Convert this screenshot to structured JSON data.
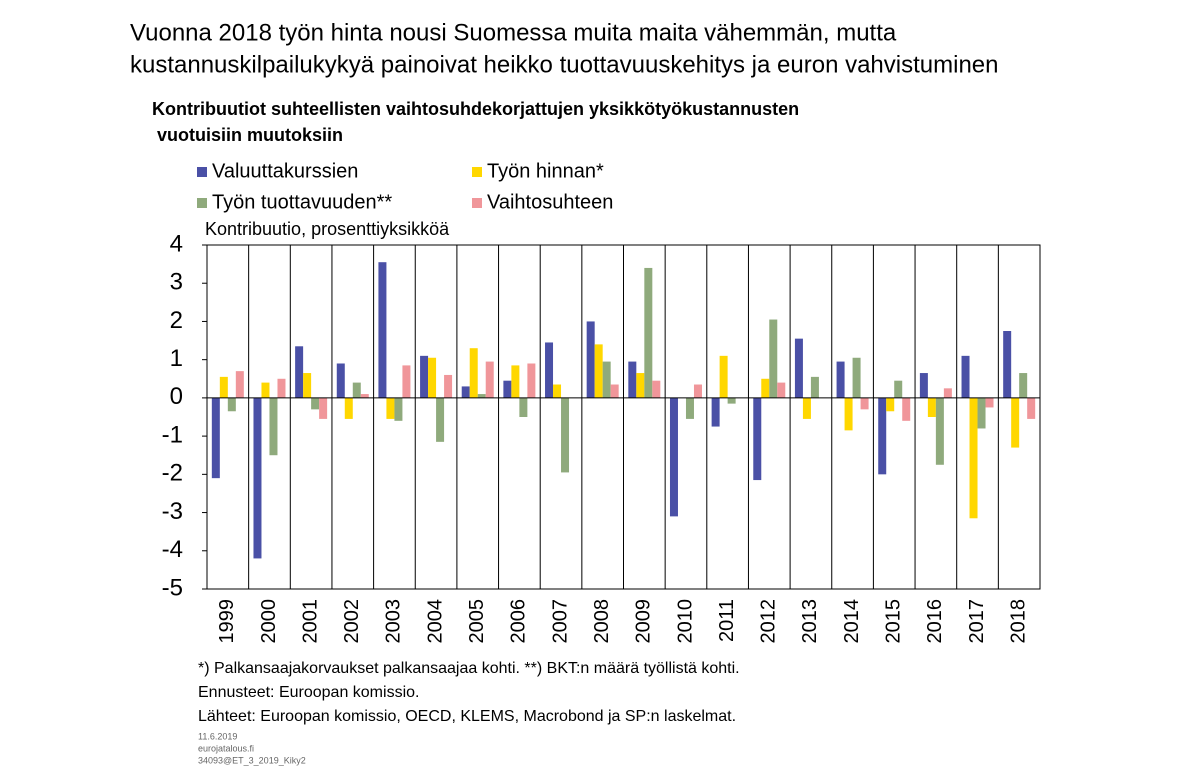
{
  "chart_data": {
    "type": "bar",
    "title": [
      "Vuonna 2018 työn hinta nousi Suomessa muita maita vähemmän, mutta",
      "kustannuskilpailukykyä painoivat heikko tuottavuuskehitys ja euron vahvistuminen"
    ],
    "subtitle": [
      "Kontribuutiot suhteellisten vaihtosuhdekorjattujen yksikkötyökustannusten",
      "vuotuisiin muutoksiin"
    ],
    "y_label": "Kontribuutio,  prosenttiyksikköä",
    "categories": [
      "1999",
      "2000",
      "2001",
      "2002",
      "2003",
      "2004",
      "2005",
      "2006",
      "2007",
      "2008",
      "2009",
      "2010",
      "2011",
      "2012",
      "2013",
      "2014",
      "2015",
      "2016",
      "2017",
      "2018"
    ],
    "series": [
      {
        "name": "Valuuttakurssien",
        "color": "#4a50a6",
        "values": [
          -2.1,
          -4.2,
          1.35,
          0.9,
          3.55,
          1.1,
          0.3,
          0.45,
          1.45,
          2.0,
          0.95,
          -3.1,
          -0.75,
          -2.15,
          1.55,
          0.95,
          -2.0,
          0.65,
          1.1,
          1.75
        ]
      },
      {
        "name": "Työn hinnan*",
        "color": "#ffd700",
        "values": [
          0.55,
          0.4,
          0.65,
          -0.55,
          -0.55,
          1.05,
          1.3,
          0.85,
          0.35,
          1.4,
          0.65,
          0,
          1.1,
          0.5,
          -0.55,
          -0.85,
          -0.35,
          -0.5,
          -3.15,
          -1.3
        ]
      },
      {
        "name": "Työn tuottavuuden**",
        "color": "#8faa7c",
        "values": [
          -0.35,
          -1.5,
          -0.3,
          0.4,
          -0.6,
          -1.15,
          0.1,
          -0.5,
          -1.95,
          0.95,
          3.4,
          -0.55,
          -0.15,
          2.05,
          0.55,
          1.05,
          0.45,
          -1.75,
          -0.8,
          0.65
        ]
      },
      {
        "name": "Vaihtosuhteen",
        "color": "#f0969a",
        "values": [
          0.7,
          0.5,
          -0.55,
          0.1,
          0.85,
          0.6,
          0.95,
          0.9,
          0,
          0.35,
          0.45,
          0.35,
          0,
          0.4,
          0,
          -0.3,
          -0.6,
          0.25,
          -0.25,
          -0.55
        ]
      }
    ],
    "ylim": [
      -5,
      4
    ],
    "yticks": [
      -5,
      -4,
      -3,
      -2,
      -1,
      0,
      1,
      2,
      3,
      4
    ],
    "notes": [
      "*) Palkansaajakorvaukset palkansaajaa kohti. **) BKT:n määrä työllistä kohti.",
      "Ennusteet: Euroopan komissio.",
      "Lähteet: Euroopan komissio, OECD, KLEMS, Macrobond ja SP:n laskelmat."
    ],
    "footer": [
      "11.6.2019",
      "eurojatalous.fi",
      "34093@ET_3_2019_Kiky2"
    ]
  }
}
